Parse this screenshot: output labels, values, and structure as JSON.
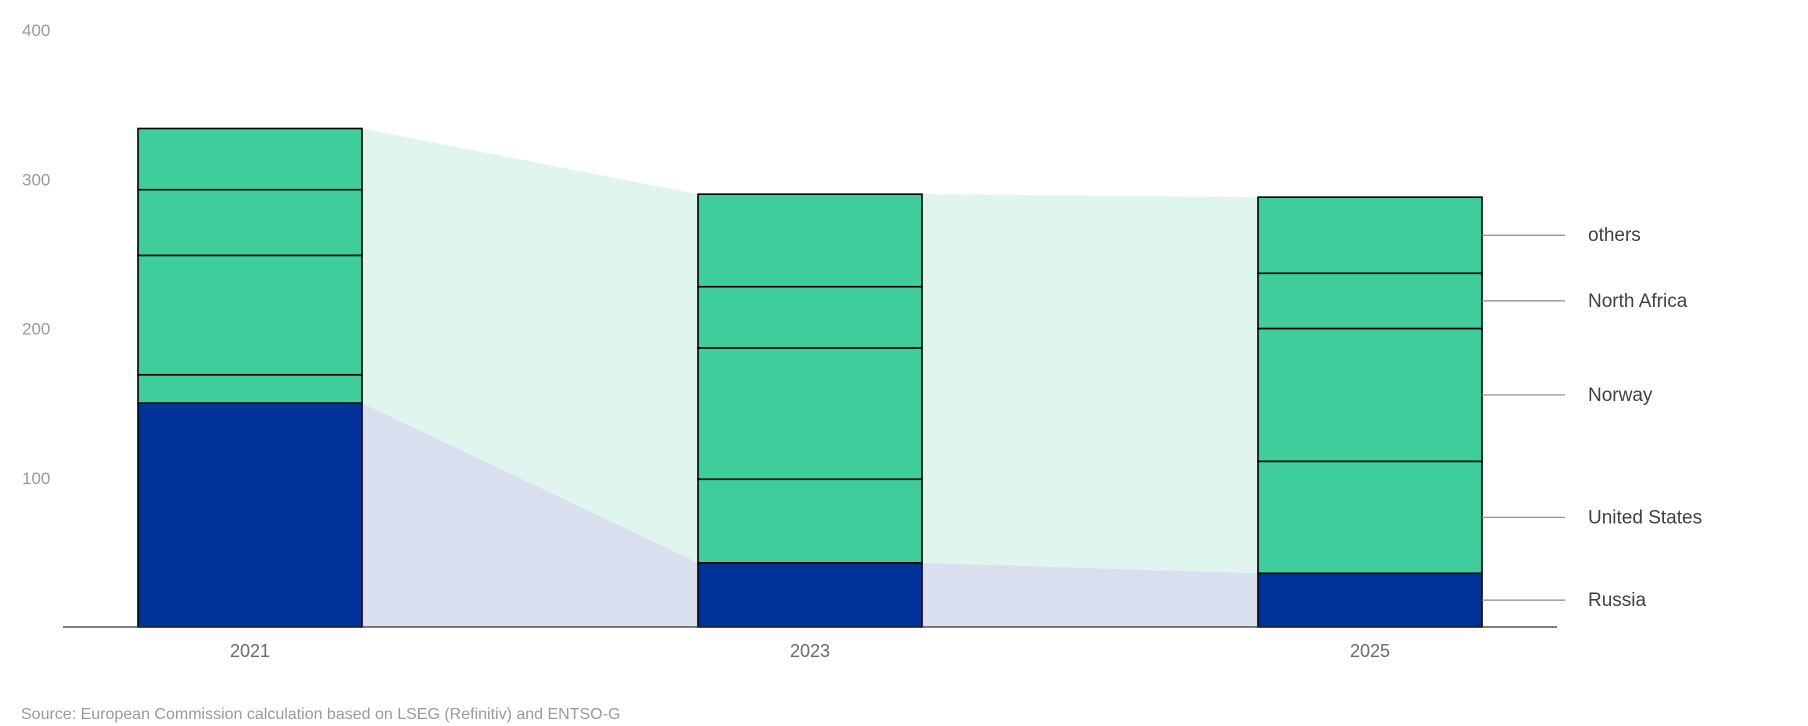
{
  "chart_data": {
    "type": "bar",
    "stacked": true,
    "categories": [
      "2021",
      "2023",
      "2025"
    ],
    "series": [
      {
        "name": "Russia",
        "values": [
          150,
          43,
          36
        ]
      },
      {
        "name": "United States",
        "values": [
          19,
          56,
          75
        ]
      },
      {
        "name": "Norway",
        "values": [
          80,
          88,
          89
        ]
      },
      {
        "name": "North Africa",
        "values": [
          44,
          41,
          37
        ]
      },
      {
        "name": "others",
        "values": [
          41,
          62,
          51
        ]
      }
    ],
    "ylim": [
      0,
      400
    ],
    "yticks": [
      "100",
      "200",
      "300",
      "400"
    ],
    "grid": false,
    "legend": "right, labels with leader lines",
    "colors": {
      "Russia": "#003399",
      "others_series": "#3ecd9b",
      "green_band": "#e0f5ee",
      "blue_band": "#dadfef",
      "bar_outline": "#000000",
      "axis": "#333333"
    },
    "title": "",
    "xlabel": "",
    "ylabel": ""
  },
  "source": "Source: European Commission calculation based on LSEG (Refinitiv) and ENTSO-G"
}
